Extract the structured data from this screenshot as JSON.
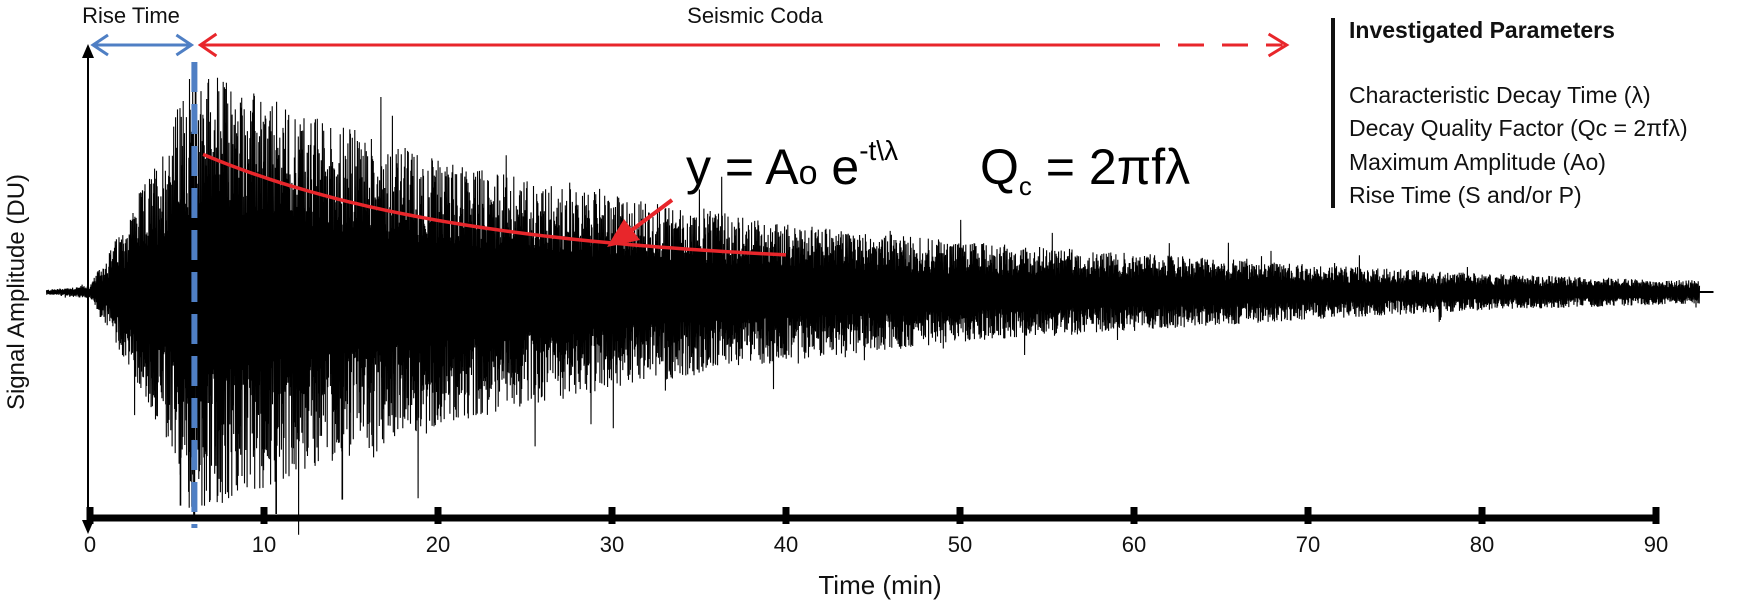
{
  "chart_data": {
    "type": "line",
    "title": "",
    "xlabel": "Time (min)",
    "ylabel": "Signal Amplitude (DU)",
    "x_ticks": [
      "0",
      "10",
      "20",
      "30",
      "40",
      "50",
      "60",
      "70",
      "80",
      "90"
    ],
    "xlim": [
      0,
      90
    ],
    "grid": false,
    "series": [
      {
        "description": "seismogram waveform",
        "color": "#000000",
        "onset_min": 0,
        "peak_min": 6,
        "end_min": 92.5,
        "envelope": [
          {
            "x": -2.5,
            "amp": 0.01
          },
          {
            "x": 0,
            "amp": 0.03
          },
          {
            "x": 2,
            "amp": 0.3
          },
          {
            "x": 4,
            "amp": 0.6
          },
          {
            "x": 6,
            "amp": 1.0
          },
          {
            "x": 10,
            "amp": 0.85
          },
          {
            "x": 20,
            "amp": 0.58
          },
          {
            "x": 30,
            "amp": 0.42
          },
          {
            "x": 40,
            "amp": 0.3
          },
          {
            "x": 50,
            "amp": 0.22
          },
          {
            "x": 60,
            "amp": 0.17
          },
          {
            "x": 70,
            "amp": 0.12
          },
          {
            "x": 80,
            "amp": 0.08
          },
          {
            "x": 92.5,
            "amp": 0.05
          }
        ]
      },
      {
        "description": "exponential decay fit",
        "color": "#e8262b",
        "x_range": [
          6.5,
          40
        ],
        "start_amp": 0.52,
        "end_amp": 0.06,
        "shape": "exponential"
      }
    ],
    "annotations": {
      "rise_time_label": "Rise Time",
      "seismic_coda_label": "Seismic Coda",
      "rise_time_range": [
        0,
        6
      ],
      "coda_range_solid": [
        6,
        60
      ],
      "coda_range_dashed": [
        60,
        69
      ],
      "dashed_marker_x": 6
    }
  },
  "formulas": {
    "decay": {
      "lhs": "y = A",
      "a_sub": "o",
      "e": " e",
      "exp": "-t\\λ"
    },
    "quality": {
      "q": "Q",
      "q_sub": "c",
      "rhs": " = 2πfλ"
    }
  },
  "parameters": {
    "title": "Investigated Parameters",
    "items": [
      "Characteristic Decay Time (λ)",
      "Decay Quality Factor (Qc = 2πfλ)",
      "Maximum Amplitude (Ao)",
      "Rise Time (S and/or P)"
    ]
  },
  "colors": {
    "waveform": "#000000",
    "rise_arrow": "#4f7fc4",
    "coda_arrow": "#e8262b",
    "marker": "#4f7fc4"
  }
}
